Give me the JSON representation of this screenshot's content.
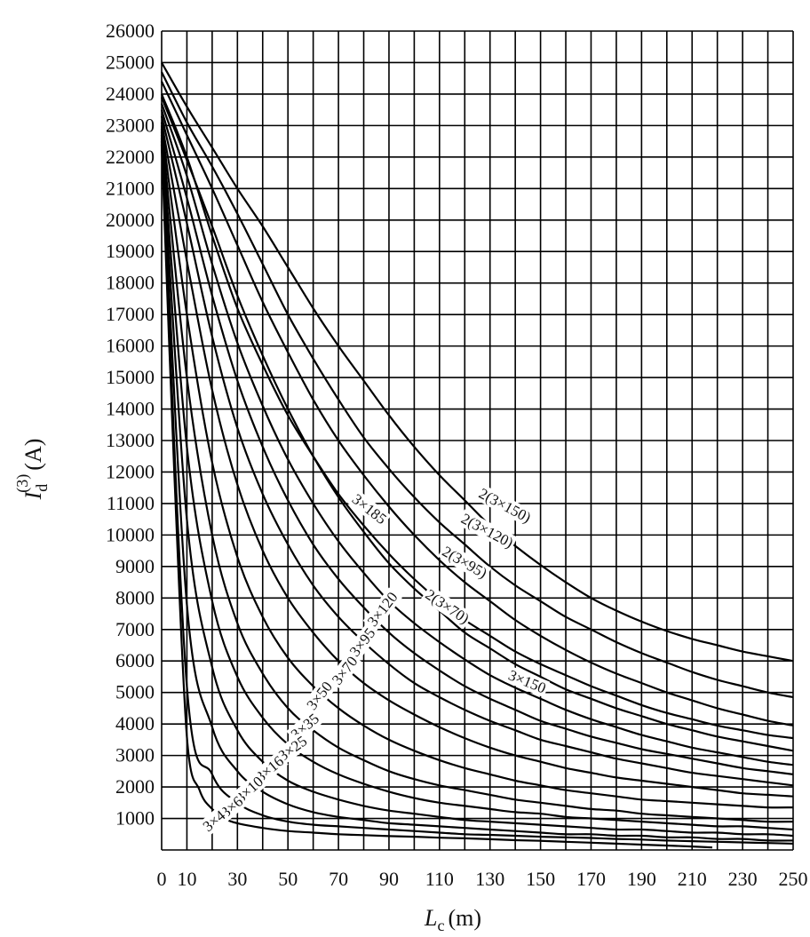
{
  "chart_data": {
    "type": "line",
    "title": "",
    "xlabel_main": "L",
    "xlabel_sub": "c",
    "xlabel_unit": "(m)",
    "ylabel_main": "I",
    "ylabel_sub": "d",
    "ylabel_sup": "(3)",
    "ylabel_unit": "(A)",
    "xlim": [
      0,
      250
    ],
    "ylim": [
      0,
      26000
    ],
    "grid": true,
    "x_tick_labels": [
      "0",
      "10",
      "30",
      "50",
      "70",
      "90",
      "110",
      "130",
      "150",
      "170",
      "190",
      "210",
      "230",
      "250"
    ],
    "y_tick_labels": [
      "1000",
      "2000",
      "3000",
      "4000",
      "5000",
      "6000",
      "7000",
      "8000",
      "9000",
      "10000",
      "11000",
      "12000",
      "13000",
      "14000",
      "15000",
      "16000",
      "17000",
      "18000",
      "19000",
      "20000",
      "21000",
      "22000",
      "23000",
      "24000",
      "25000",
      "26000"
    ],
    "series": [
      {
        "name": "2(3×150)",
        "x": [
          0,
          10,
          20,
          30,
          40,
          50,
          60,
          70,
          80,
          90,
          100,
          110,
          120,
          130,
          140,
          150,
          160,
          170,
          180,
          190,
          200,
          210,
          220,
          230,
          240,
          250
        ],
        "y": [
          25000,
          23600,
          22300,
          21000,
          19800,
          18500,
          17200,
          16000,
          14900,
          13800,
          12800,
          11900,
          11100,
          10300,
          9650,
          9050,
          8500,
          8000,
          7600,
          7250,
          6950,
          6700,
          6500,
          6300,
          6150,
          6000
        ]
      },
      {
        "name": "2(3×120)",
        "x": [
          0,
          10,
          20,
          30,
          40,
          50,
          60,
          70,
          80,
          90,
          100,
          110,
          120,
          130,
          140,
          150,
          160,
          170,
          180,
          190,
          200,
          210,
          220,
          230,
          240,
          250
        ],
        "y": [
          24700,
          23100,
          21700,
          20200,
          18600,
          17000,
          15600,
          14300,
          13100,
          12100,
          11200,
          10400,
          9700,
          9000,
          8400,
          7900,
          7400,
          7000,
          6600,
          6250,
          5950,
          5650,
          5400,
          5200,
          5000,
          4850
        ]
      },
      {
        "name": "2(3×95)",
        "x": [
          0,
          10,
          20,
          30,
          40,
          50,
          60,
          70,
          80,
          90,
          100,
          110,
          120,
          130,
          140,
          150,
          160,
          170,
          180,
          190,
          200,
          210,
          220,
          230,
          240,
          250
        ],
        "y": [
          24400,
          22700,
          21000,
          19200,
          17400,
          15800,
          14300,
          13000,
          11900,
          10900,
          10000,
          9200,
          8500,
          7900,
          7300,
          6800,
          6350,
          5950,
          5600,
          5300,
          5000,
          4750,
          4500,
          4300,
          4100,
          3950
        ]
      },
      {
        "name": "3×185",
        "x": [
          0,
          10,
          20,
          30,
          40,
          50,
          60,
          70,
          80,
          90,
          100,
          110,
          120,
          130,
          140,
          150,
          160,
          170,
          180,
          190,
          200,
          210,
          220,
          230,
          240,
          250
        ],
        "y": [
          24000,
          22000,
          19500,
          17200,
          15400,
          13800,
          12500,
          11300,
          10300,
          9400,
          8600,
          7900,
          7300,
          6800,
          6300,
          5900,
          5550,
          5200,
          4900,
          4600,
          4350,
          4150,
          3950,
          3800,
          3650,
          3550
        ]
      },
      {
        "name": "2(3×70)",
        "x": [
          0,
          10,
          20,
          30,
          40,
          50,
          60,
          70,
          80,
          90,
          100,
          110,
          120,
          130,
          140,
          150,
          160,
          170,
          180,
          190,
          200,
          210,
          220,
          230,
          240,
          250
        ],
        "y": [
          23900,
          21900,
          19800,
          17600,
          15700,
          14000,
          12500,
          11200,
          10100,
          9100,
          8300,
          7600,
          6900,
          6400,
          5900,
          5500,
          5100,
          4800,
          4500,
          4250,
          4000,
          3800,
          3600,
          3450,
          3300,
          3150
        ]
      },
      {
        "name": "3×150",
        "x": [
          0,
          10,
          20,
          30,
          40,
          50,
          60,
          70,
          80,
          90,
          100,
          110,
          120,
          130,
          140,
          150,
          160,
          170,
          180,
          190,
          200,
          210,
          220,
          230,
          240,
          250
        ],
        "y": [
          23700,
          21400,
          18600,
          16100,
          14100,
          12400,
          11000,
          9800,
          8800,
          7900,
          7200,
          6600,
          6050,
          5550,
          5150,
          4800,
          4450,
          4150,
          3900,
          3650,
          3450,
          3250,
          3100,
          2950,
          2800,
          2700
        ]
      },
      {
        "name": "3×120",
        "x": [
          0,
          10,
          20,
          30,
          40,
          50,
          60,
          70,
          80,
          90,
          100,
          110,
          120,
          130,
          140,
          150,
          160,
          170,
          180,
          190,
          200,
          210,
          220,
          230,
          240,
          250
        ],
        "y": [
          23500,
          20700,
          17600,
          14900,
          12800,
          11100,
          9700,
          8600,
          7700,
          6900,
          6250,
          5700,
          5200,
          4800,
          4450,
          4100,
          3850,
          3600,
          3400,
          3200,
          3050,
          2900,
          2750,
          2600,
          2500,
          2400
        ]
      },
      {
        "name": "3×95",
        "x": [
          0,
          10,
          20,
          30,
          40,
          50,
          60,
          70,
          80,
          90,
          100,
          110,
          120,
          130,
          140,
          150,
          160,
          170,
          180,
          190,
          200,
          210,
          220,
          230,
          240,
          250
        ],
        "y": [
          23300,
          19900,
          16300,
          13400,
          11300,
          9700,
          8400,
          7400,
          6600,
          5900,
          5300,
          4850,
          4450,
          4100,
          3800,
          3500,
          3300,
          3100,
          2900,
          2750,
          2600,
          2450,
          2350,
          2250,
          2150,
          2050
        ]
      },
      {
        "name": "3×70",
        "x": [
          0,
          10,
          20,
          30,
          40,
          50,
          60,
          70,
          80,
          90,
          100,
          110,
          120,
          130,
          140,
          150,
          160,
          170,
          180,
          190,
          200,
          210,
          220,
          230,
          240,
          250
        ],
        "y": [
          23100,
          18700,
          14600,
          11600,
          9500,
          8000,
          6900,
          6000,
          5300,
          4750,
          4300,
          3900,
          3550,
          3250,
          3000,
          2800,
          2600,
          2450,
          2300,
          2200,
          2100,
          2000,
          1900,
          1800,
          1750,
          1700
        ]
      },
      {
        "name": "3×50",
        "x": [
          0,
          10,
          20,
          30,
          40,
          50,
          60,
          70,
          80,
          90,
          100,
          110,
          120,
          130,
          140,
          150,
          160,
          170,
          180,
          190,
          200,
          210,
          220,
          230,
          240,
          250
        ],
        "y": [
          23000,
          17000,
          12300,
          9300,
          7400,
          6100,
          5200,
          4500,
          3950,
          3500,
          3150,
          2850,
          2600,
          2400,
          2200,
          2050,
          1900,
          1800,
          1700,
          1600,
          1550,
          1500,
          1450,
          1400,
          1350,
          1350
        ]
      },
      {
        "name": "3×35",
        "x": [
          0,
          10,
          20,
          30,
          40,
          50,
          60,
          70,
          80,
          90,
          100,
          110,
          120,
          130,
          140,
          150,
          160,
          170,
          180,
          190,
          200,
          210,
          220,
          230,
          240,
          250
        ],
        "y": [
          22900,
          15000,
          10000,
          7200,
          5600,
          4500,
          3800,
          3250,
          2850,
          2500,
          2250,
          2050,
          1900,
          1750,
          1600,
          1500,
          1400,
          1300,
          1250,
          1150,
          1100,
          1050,
          1000,
          950,
          900,
          900
        ]
      },
      {
        "name": "3×25",
        "x": [
          0,
          10,
          20,
          30,
          40,
          50,
          60,
          70,
          80,
          90,
          100,
          110,
          120,
          130,
          140,
          150,
          160,
          170,
          180,
          190,
          200,
          210,
          220,
          230,
          240,
          250
        ],
        "y": [
          22800,
          12800,
          7900,
          5500,
          4200,
          3350,
          2800,
          2400,
          2100,
          1850,
          1650,
          1500,
          1400,
          1300,
          1200,
          1150,
          1050,
          1000,
          950,
          900,
          850,
          800,
          750,
          750,
          700,
          650
        ]
      },
      {
        "name": "3×16",
        "x": [
          0,
          10,
          20,
          30,
          40,
          50,
          60,
          70,
          80,
          90,
          100,
          110,
          120,
          130,
          140,
          150,
          160,
          170,
          180,
          190,
          200,
          210,
          220,
          230,
          240,
          250
        ],
        "y": [
          22700,
          10500,
          5800,
          3800,
          2800,
          2200,
          1850,
          1600,
          1400,
          1250,
          1150,
          1050,
          950,
          900,
          850,
          800,
          750,
          700,
          650,
          650,
          600,
          550,
          550,
          500,
          500,
          450
        ]
      },
      {
        "name": "3×10",
        "x": [
          0,
          10,
          20,
          30,
          40,
          50,
          60,
          70,
          80,
          90,
          100,
          110,
          120,
          130,
          140,
          150,
          160,
          170,
          180,
          190,
          200,
          210,
          220,
          230,
          240,
          250
        ],
        "y": [
          22600,
          7800,
          3900,
          2500,
          1850,
          1450,
          1200,
          1050,
          950,
          850,
          800,
          750,
          700,
          650,
          600,
          550,
          500,
          500,
          450,
          450,
          400,
          400,
          350,
          350,
          300,
          300
        ]
      },
      {
        "name": "3×6",
        "x": [
          0,
          10,
          20,
          30,
          40,
          50,
          60,
          70,
          80,
          90,
          100,
          110,
          120,
          130,
          140,
          150,
          160,
          170,
          180,
          190,
          200,
          210,
          220,
          230,
          240,
          250
        ],
        "y": [
          22500,
          5200,
          2400,
          1500,
          1100,
          900,
          800,
          750,
          700,
          650,
          600,
          550,
          500,
          480,
          450,
          420,
          400,
          380,
          350,
          330,
          300,
          280,
          260,
          240,
          220,
          200
        ]
      },
      {
        "name": "3×4",
        "x": [
          0,
          5,
          10,
          15,
          20,
          25,
          30,
          40,
          50,
          60,
          70,
          80,
          90,
          100,
          110,
          120,
          130,
          140,
          150,
          160,
          170,
          180,
          190,
          200,
          210,
          218
        ],
        "y": [
          22400,
          12000,
          3600,
          1900,
          1300,
          1000,
          850,
          700,
          600,
          550,
          500,
          470,
          440,
          420,
          390,
          370,
          340,
          310,
          290,
          260,
          230,
          200,
          170,
          140,
          110,
          80
        ]
      }
    ],
    "label_positions": [
      {
        "name": "2(3×150)",
        "x": 135,
        "y": 10800,
        "angle": 28
      },
      {
        "name": "2(3×120)",
        "x": 128,
        "y": 10000,
        "angle": 28
      },
      {
        "name": "2(3×95)",
        "x": 119,
        "y": 9000,
        "angle": 30
      },
      {
        "name": "3×185",
        "x": 81,
        "y": 10700,
        "angle": 38
      },
      {
        "name": "2(3×70)",
        "x": 112,
        "y": 7600,
        "angle": 34
      },
      {
        "name": "3×150",
        "x": 144,
        "y": 5200,
        "angle": 22
      },
      {
        "name": "3×120",
        "x": 89,
        "y": 7550,
        "angle": -52
      },
      {
        "name": "3×95",
        "x": 81,
        "y": 6500,
        "angle": -52
      },
      {
        "name": "3×70",
        "x": 74,
        "y": 5600,
        "angle": -52
      },
      {
        "name": "3×50",
        "x": 64,
        "y": 4800,
        "angle": -52
      },
      {
        "name": "3×35",
        "x": 58,
        "y": 3800,
        "angle": -40
      },
      {
        "name": "3×25",
        "x": 53,
        "y": 3100,
        "angle": -36
      },
      {
        "name": "3×16",
        "x": 44,
        "y": 2450,
        "angle": -40
      },
      {
        "name": "3×10",
        "x": 36,
        "y": 1800,
        "angle": -42
      },
      {
        "name": "3×6",
        "x": 29,
        "y": 1250,
        "angle": -40
      },
      {
        "name": "3×4",
        "x": 22,
        "y": 800,
        "angle": -40
      }
    ]
  }
}
